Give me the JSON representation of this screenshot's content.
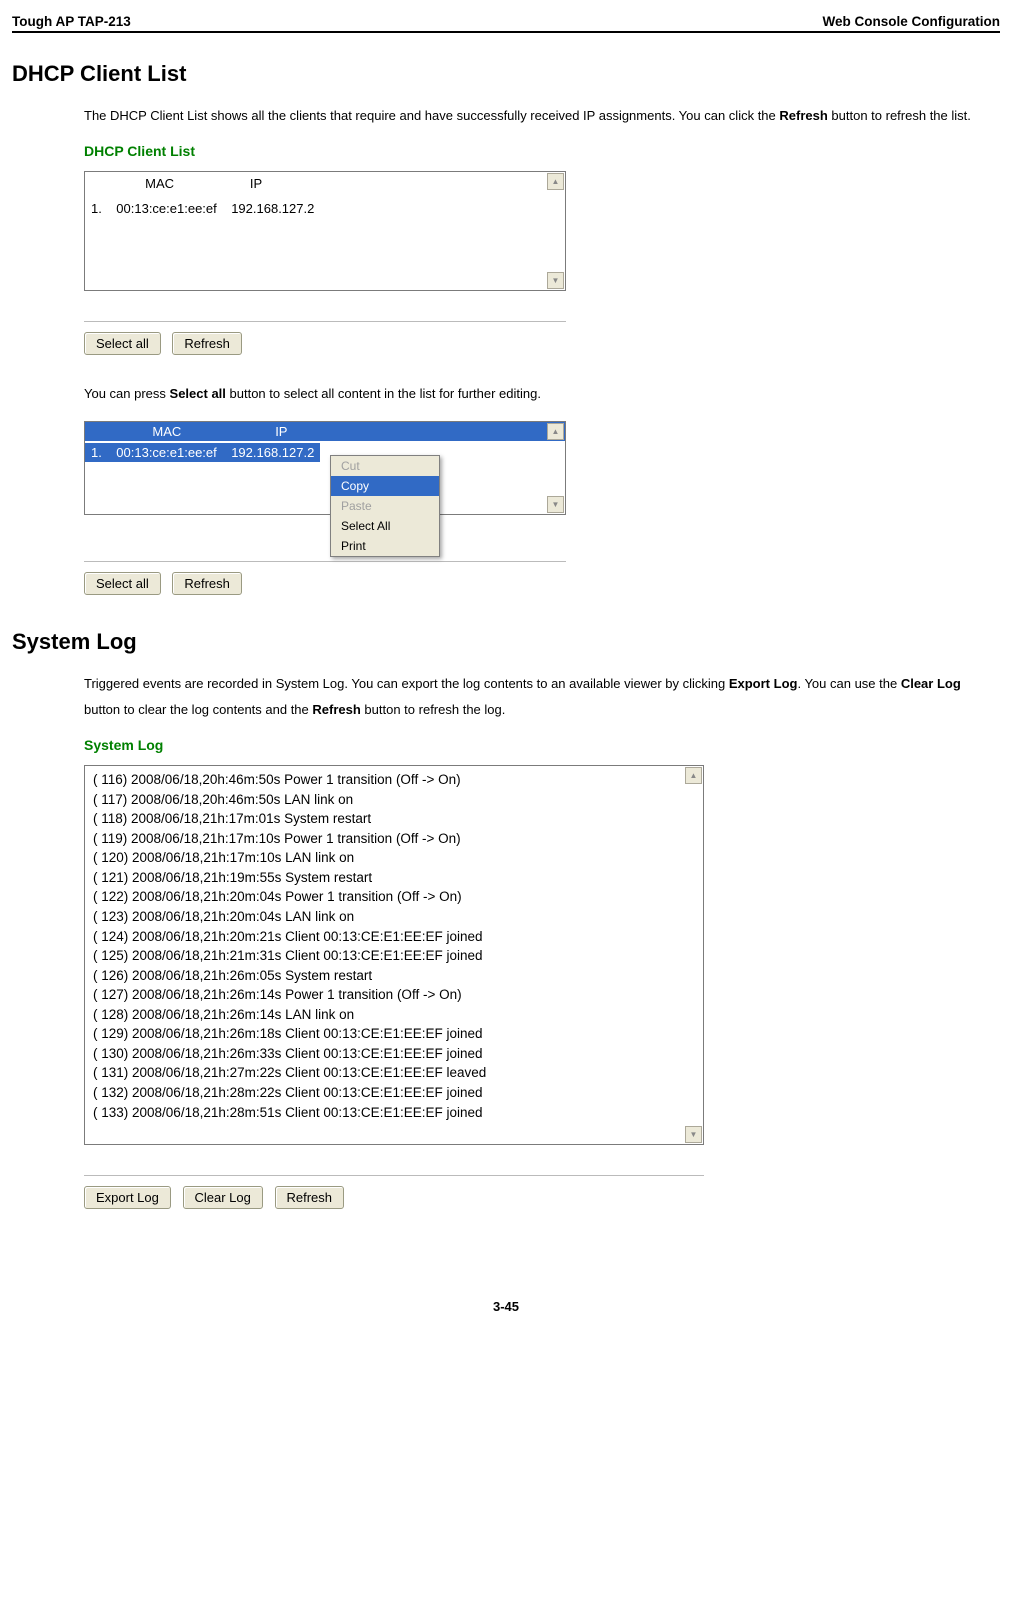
{
  "header": {
    "left": "Tough AP TAP-213",
    "right": "Web Console Configuration"
  },
  "s1": {
    "title": "DHCP Client List",
    "para1a": "The DHCP Client List shows all the clients that require and have successfully received IP assignments. You can click the ",
    "para1b": "Refresh",
    "para1c": " button to refresh the list.",
    "panelTitle": "DHCP Client List",
    "head": "               MAC                     IP",
    "row": "1.    00:13:ce:e1:ee:ef    192.168.127.2",
    "btnSelectAll": "Select all",
    "btnRefresh": "Refresh",
    "para2a": "You can press ",
    "para2b": "Select all",
    "para2c": " button to select all content in the list for further editing.",
    "selHead": "                 MAC                          IP     ",
    "selRow": "1.    00:13:ce:e1:ee:ef    192.168.127.2",
    "ctx": {
      "cut": "Cut",
      "copy": "Copy",
      "paste": "Paste",
      "selectAll": "Select All",
      "print": "Print"
    }
  },
  "s2": {
    "title": "System Log",
    "para1a": "Triggered events are recorded in System Log. You can export the log contents to an available viewer by clicking ",
    "para1b": "Export Log",
    "para1c": ". You can use the ",
    "para1d": "Clear Log",
    "para1e": " button to clear the log contents and the ",
    "para1f": "Refresh",
    "para1g": " button to refresh the log.",
    "panelTitle": "System Log",
    "lines": [
      "( 116) 2008/06/18,20h:46m:50s Power 1 transition (Off -> On)",
      "( 117) 2008/06/18,20h:46m:50s LAN link on",
      "( 118) 2008/06/18,21h:17m:01s System restart",
      "( 119) 2008/06/18,21h:17m:10s Power 1 transition (Off -> On)",
      "( 120) 2008/06/18,21h:17m:10s LAN link on",
      "( 121) 2008/06/18,21h:19m:55s System restart",
      "( 122) 2008/06/18,21h:20m:04s Power 1 transition (Off -> On)",
      "( 123) 2008/06/18,21h:20m:04s LAN link on",
      "( 124) 2008/06/18,21h:20m:21s Client 00:13:CE:E1:EE:EF joined",
      "( 125) 2008/06/18,21h:21m:31s Client 00:13:CE:E1:EE:EF joined",
      "( 126) 2008/06/18,21h:26m:05s System restart",
      "( 127) 2008/06/18,21h:26m:14s Power 1 transition (Off -> On)",
      "( 128) 2008/06/18,21h:26m:14s LAN link on",
      "( 129) 2008/06/18,21h:26m:18s Client 00:13:CE:E1:EE:EF joined",
      "( 130) 2008/06/18,21h:26m:33s Client 00:13:CE:E1:EE:EF joined",
      "( 131) 2008/06/18,21h:27m:22s Client 00:13:CE:E1:EE:EF leaved",
      "( 132) 2008/06/18,21h:28m:22s Client 00:13:CE:E1:EE:EF joined",
      "( 133) 2008/06/18,21h:28m:51s Client 00:13:CE:E1:EE:EF joined"
    ],
    "btnExport": "Export Log",
    "btnClear": "Clear Log",
    "btnRefresh": "Refresh"
  },
  "footer": "3-45"
}
